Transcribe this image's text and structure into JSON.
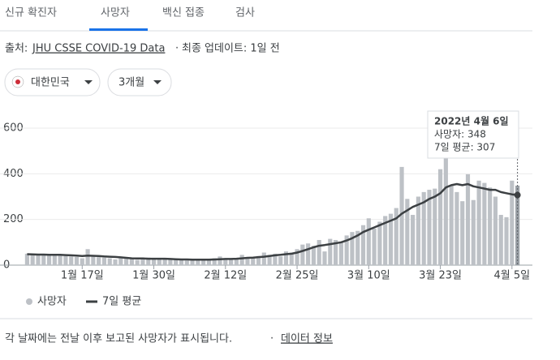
{
  "tabs": [
    "신규 확진자",
    "사망자",
    "백신 접종",
    "검사"
  ],
  "selected_tab": 1,
  "source": {
    "label": "출처:",
    "link": "JHU CSSE COVID-19 Data",
    "updated": "최종 업데이트: 1일 전"
  },
  "filters": [
    "대한민국",
    "3개월"
  ],
  "chart_data": {
    "type": "bar",
    "categories": [
      null,
      null,
      null,
      null,
      null,
      null,
      null,
      null,
      null,
      null,
      "1월 17일",
      null,
      null,
      null,
      null,
      null,
      null,
      null,
      null,
      null,
      null,
      null,
      null,
      "1월 30일",
      null,
      null,
      null,
      null,
      null,
      null,
      null,
      null,
      null,
      null,
      null,
      null,
      "2월 12일",
      null,
      null,
      null,
      null,
      null,
      null,
      null,
      null,
      null,
      null,
      null,
      null,
      "2월 25일",
      null,
      null,
      null,
      null,
      null,
      null,
      null,
      null,
      null,
      null,
      null,
      null,
      "3월 10일",
      null,
      null,
      null,
      null,
      null,
      null,
      null,
      null,
      null,
      null,
      null,
      null,
      "3월 23일",
      null,
      null,
      null,
      null,
      null,
      null,
      null,
      null,
      null,
      null,
      null,
      null,
      "4월 5일",
      null
    ],
    "series": [
      {
        "name": "사망자",
        "type": "bar",
        "color": "#bdc1c6",
        "values": [
          50,
          46,
          44,
          45,
          42,
          46,
          44,
          40,
          38,
          36,
          30,
          70,
          40,
          35,
          33,
          30,
          25,
          30,
          28,
          27,
          23,
          30,
          33,
          27,
          25,
          30,
          28,
          25,
          22,
          20,
          22,
          25,
          20,
          24,
          30,
          38,
          30,
          27,
          25,
          45,
          30,
          35,
          40,
          55,
          45,
          50,
          38,
          60,
          55,
          70,
          90,
          95,
          85,
          110,
          60,
          115,
          110,
          100,
          130,
          145,
          150,
          175,
          205,
          160,
          190,
          215,
          225,
          250,
          430,
          290,
          220,
          300,
          320,
          330,
          335,
          420,
          470,
          350,
          320,
          280,
          398,
          285,
          370,
          360,
          340,
          300,
          220,
          210,
          370,
          348
        ]
      },
      {
        "name": "7일 평균",
        "type": "line",
        "color": "#3c4043",
        "values": [
          48,
          47,
          46,
          46,
          45,
          45,
          45,
          44,
          43,
          42,
          40,
          42,
          41,
          40,
          38,
          37,
          36,
          34,
          32,
          30,
          29,
          29,
          28,
          28,
          28,
          28,
          27,
          26,
          25,
          25,
          24,
          24,
          24,
          24,
          25,
          26,
          27,
          27,
          28,
          30,
          32,
          33,
          35,
          37,
          40,
          43,
          45,
          48,
          50,
          55,
          62,
          70,
          78,
          85,
          88,
          92,
          96,
          100,
          108,
          118,
          130,
          145,
          155,
          165,
          175,
          185,
          195,
          205,
          225,
          240,
          255,
          265,
          275,
          290,
          300,
          315,
          340,
          350,
          355,
          350,
          355,
          345,
          340,
          335,
          330,
          330,
          320,
          315,
          310,
          307
        ]
      }
    ],
    "ylim": [
      0,
      600
    ],
    "yticks": [
      0,
      200,
      400,
      600
    ],
    "grid": true,
    "tooltip": {
      "date": "2022년 4월 6일",
      "lines": [
        "사망자: 348",
        "7일 평균: 307"
      ]
    }
  },
  "footer": {
    "note": "각 날짜에는 전날 이후 보고된 사망자가 표시됩니다.",
    "link": "데이터 정보"
  }
}
